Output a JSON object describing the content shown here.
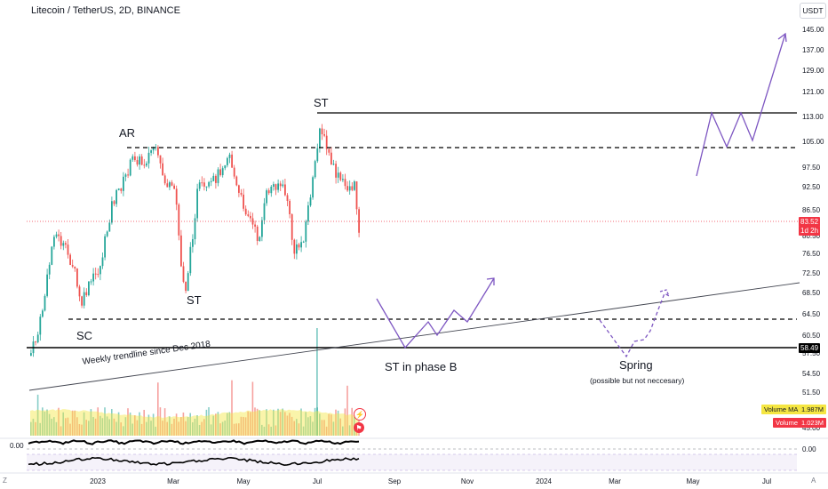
{
  "header": {
    "title": "Litecoin / TetherUS, 2D, BINANCE",
    "currency": "USDT"
  },
  "price_axis": {
    "ticks": [
      "145.00",
      "137.00",
      "129.00",
      "121.00",
      "113.00",
      "105.00",
      "97.50",
      "92.50",
      "86.50",
      "80.50",
      "76.50",
      "72.50",
      "68.50",
      "64.50",
      "60.50",
      "57.50",
      "54.50",
      "51.50",
      "48.50",
      "45.00"
    ],
    "last_price": "83.52",
    "countdown": "1d 2h",
    "level_label": "58.49",
    "last_price_color": "#f23645"
  },
  "time_axis": {
    "ticks": [
      "2023",
      "Mar",
      "May",
      "Jul",
      "Sep",
      "Nov",
      "2024",
      "Mar",
      "May",
      "Jul"
    ]
  },
  "oscillator": {
    "zero_label": "0.00",
    "zero_label_right": "0.00"
  },
  "volume_legend": {
    "ma_label": "Volume MA",
    "ma_value": "1.987M",
    "vol_label": "Volume",
    "vol_value": "1.023M"
  },
  "annotations": {
    "ar": "AR",
    "st_top": "ST",
    "st_mid": "ST",
    "sc": "SC",
    "trendline": "Weekly trendline since Dec 2018",
    "st_phase_b": "ST in phase B",
    "spring": "Spring",
    "spring_note": "(possible but not neccesary)"
  },
  "corners": {
    "left": "Z",
    "right": "A"
  },
  "colors": {
    "up": "#26a69a",
    "down": "#ef5350",
    "projection": "#7e57c2",
    "volume_ma": "#f5e642"
  }
}
